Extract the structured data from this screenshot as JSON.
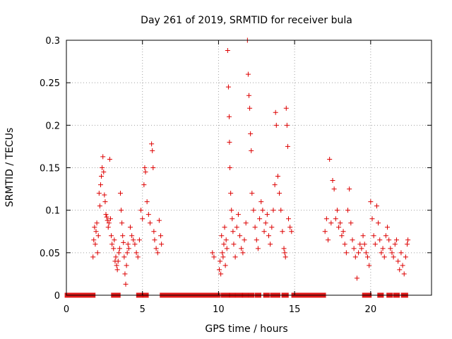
{
  "chart_data": {
    "type": "scatter",
    "title": "Day 261 of 2019, SRMTID for receiver bula",
    "xlabel": "GPS time / hours",
    "ylabel": "SRMTID / TECUs",
    "xlim": [
      0,
      24
    ],
    "ylim": [
      0,
      0.3
    ],
    "xticks": [
      0,
      5,
      10,
      15,
      20
    ],
    "xtick_labels": [
      "0",
      "5",
      "10",
      "15",
      "20"
    ],
    "yticks": [
      0,
      0.05,
      0.1,
      0.15,
      0.2,
      0.25,
      0.3
    ],
    "ytick_labels": [
      "0",
      "0.05",
      "0.1",
      "0.15",
      "0.2",
      "0.25",
      "0.3"
    ],
    "grid": true,
    "marker": "plus",
    "color": "#dd0000",
    "zero_value_ranges": [
      [
        0.05,
        1.75
      ],
      [
        3.1,
        3.4
      ],
      [
        4.75,
        4.9
      ],
      [
        5.15,
        5.25
      ],
      [
        6.3,
        9.95
      ],
      [
        10.3,
        10.6
      ],
      [
        10.85,
        10.95
      ],
      [
        11.25,
        11.45
      ],
      [
        11.7,
        11.8
      ],
      [
        12.1,
        12.2
      ],
      [
        12.55,
        12.65
      ],
      [
        13.1,
        13.2
      ],
      [
        13.55,
        13.9
      ],
      [
        14.3,
        14.45
      ],
      [
        14.95,
        16.9
      ],
      [
        19.6,
        19.9
      ],
      [
        20.6,
        20.7
      ],
      [
        21.2,
        21.3
      ],
      [
        21.65,
        21.75
      ],
      [
        22.15,
        22.3
      ]
    ],
    "series": [
      {
        "name": "SRMTID",
        "points": [
          [
            1.75,
            0.045
          ],
          [
            1.8,
            0.065
          ],
          [
            1.85,
            0.08
          ],
          [
            1.9,
            0.06
          ],
          [
            1.95,
            0.075
          ],
          [
            2.0,
            0.085
          ],
          [
            2.05,
            0.05
          ],
          [
            2.1,
            0.07
          ],
          [
            2.15,
            0.12
          ],
          [
            2.2,
            0.105
          ],
          [
            2.25,
            0.13
          ],
          [
            2.3,
            0.14
          ],
          [
            2.35,
            0.15
          ],
          [
            2.4,
            0.163
          ],
          [
            2.45,
            0.145
          ],
          [
            2.5,
            0.118
          ],
          [
            2.55,
            0.11
          ],
          [
            2.6,
            0.095
          ],
          [
            2.65,
            0.092
          ],
          [
            2.7,
            0.088
          ],
          [
            2.75,
            0.08
          ],
          [
            2.8,
            0.085
          ],
          [
            2.85,
            0.16
          ],
          [
            2.9,
            0.09
          ],
          [
            2.95,
            0.07
          ],
          [
            3.0,
            0.06
          ],
          [
            3.1,
            0.055
          ],
          [
            3.15,
            0.065
          ],
          [
            3.2,
            0.04
          ],
          [
            3.25,
            0.045
          ],
          [
            3.3,
            0.035
          ],
          [
            3.35,
            0.03
          ],
          [
            3.4,
            0.04
          ],
          [
            3.45,
            0.05
          ],
          [
            3.5,
            0.055
          ],
          [
            3.55,
            0.12
          ],
          [
            3.6,
            0.1
          ],
          [
            3.65,
            0.085
          ],
          [
            3.7,
            0.07
          ],
          [
            3.75,
            0.062
          ],
          [
            3.8,
            0.045
          ],
          [
            3.85,
            0.025
          ],
          [
            3.9,
            0.013
          ],
          [
            3.95,
            0.035
          ],
          [
            4.0,
            0.05
          ],
          [
            4.05,
            0.06
          ],
          [
            4.1,
            0.055
          ],
          [
            4.2,
            0.08
          ],
          [
            4.3,
            0.07
          ],
          [
            4.4,
            0.065
          ],
          [
            4.5,
            0.06
          ],
          [
            4.6,
            0.05
          ],
          [
            4.7,
            0.045
          ],
          [
            4.8,
            0.065
          ],
          [
            4.9,
            0.1
          ],
          [
            5.0,
            0.09
          ],
          [
            5.1,
            0.13
          ],
          [
            5.15,
            0.15
          ],
          [
            5.2,
            0.145
          ],
          [
            5.3,
            0.11
          ],
          [
            5.4,
            0.095
          ],
          [
            5.5,
            0.085
          ],
          [
            5.6,
            0.178
          ],
          [
            5.65,
            0.17
          ],
          [
            5.7,
            0.15
          ],
          [
            5.75,
            0.075
          ],
          [
            5.8,
            0.065
          ],
          [
            5.9,
            0.055
          ],
          [
            6.0,
            0.05
          ],
          [
            6.1,
            0.088
          ],
          [
            6.2,
            0.07
          ],
          [
            6.25,
            0.06
          ],
          [
            9.6,
            0.05
          ],
          [
            9.7,
            0.045
          ],
          [
            10.05,
            0.03
          ],
          [
            10.1,
            0.04
          ],
          [
            10.15,
            0.025
          ],
          [
            10.2,
            0.07
          ],
          [
            10.25,
            0.05
          ],
          [
            10.3,
            0.045
          ],
          [
            10.35,
            0.06
          ],
          [
            10.4,
            0.08
          ],
          [
            10.45,
            0.035
          ],
          [
            10.5,
            0.065
          ],
          [
            10.55,
            0.055
          ],
          [
            10.6,
            0.288
          ],
          [
            10.65,
            0.245
          ],
          [
            10.7,
            0.21
          ],
          [
            10.72,
            0.18
          ],
          [
            10.75,
            0.15
          ],
          [
            10.8,
            0.12
          ],
          [
            10.85,
            0.1
          ],
          [
            10.9,
            0.09
          ],
          [
            10.95,
            0.075
          ],
          [
            11.0,
            0.06
          ],
          [
            11.1,
            0.045
          ],
          [
            11.2,
            0.08
          ],
          [
            11.3,
            0.095
          ],
          [
            11.4,
            0.07
          ],
          [
            11.5,
            0.055
          ],
          [
            11.6,
            0.05
          ],
          [
            11.7,
            0.065
          ],
          [
            11.8,
            0.085
          ],
          [
            11.9,
            0.3
          ],
          [
            11.95,
            0.26
          ],
          [
            12.0,
            0.235
          ],
          [
            12.05,
            0.22
          ],
          [
            12.1,
            0.19
          ],
          [
            12.15,
            0.17
          ],
          [
            12.2,
            0.12
          ],
          [
            12.3,
            0.1
          ],
          [
            12.4,
            0.08
          ],
          [
            12.5,
            0.065
          ],
          [
            12.6,
            0.055
          ],
          [
            12.7,
            0.09
          ],
          [
            12.8,
            0.11
          ],
          [
            12.9,
            0.1
          ],
          [
            13.0,
            0.075
          ],
          [
            13.1,
            0.085
          ],
          [
            13.2,
            0.095
          ],
          [
            13.3,
            0.07
          ],
          [
            13.4,
            0.06
          ],
          [
            13.5,
            0.08
          ],
          [
            13.6,
            0.1
          ],
          [
            13.7,
            0.13
          ],
          [
            13.75,
            0.215
          ],
          [
            13.8,
            0.2
          ],
          [
            13.9,
            0.14
          ],
          [
            14.0,
            0.12
          ],
          [
            14.1,
            0.1
          ],
          [
            14.2,
            0.075
          ],
          [
            14.3,
            0.055
          ],
          [
            14.35,
            0.05
          ],
          [
            14.4,
            0.045
          ],
          [
            14.45,
            0.22
          ],
          [
            14.5,
            0.2
          ],
          [
            14.55,
            0.175
          ],
          [
            14.6,
            0.09
          ],
          [
            14.7,
            0.08
          ],
          [
            14.8,
            0.075
          ],
          [
            17.0,
            0.075
          ],
          [
            17.1,
            0.09
          ],
          [
            17.2,
            0.065
          ],
          [
            17.3,
            0.16
          ],
          [
            17.4,
            0.085
          ],
          [
            17.5,
            0.135
          ],
          [
            17.6,
            0.125
          ],
          [
            17.7,
            0.09
          ],
          [
            17.8,
            0.1
          ],
          [
            17.9,
            0.08
          ],
          [
            18.0,
            0.085
          ],
          [
            18.1,
            0.07
          ],
          [
            18.2,
            0.075
          ],
          [
            18.3,
            0.06
          ],
          [
            18.4,
            0.05
          ],
          [
            18.5,
            0.1
          ],
          [
            18.6,
            0.125
          ],
          [
            18.7,
            0.085
          ],
          [
            18.8,
            0.065
          ],
          [
            18.9,
            0.055
          ],
          [
            19.0,
            0.045
          ],
          [
            19.1,
            0.02
          ],
          [
            19.2,
            0.05
          ],
          [
            19.3,
            0.06
          ],
          [
            19.4,
            0.055
          ],
          [
            19.5,
            0.07
          ],
          [
            19.6,
            0.06
          ],
          [
            19.7,
            0.05
          ],
          [
            19.8,
            0.045
          ],
          [
            19.9,
            0.035
          ],
          [
            20.0,
            0.11
          ],
          [
            20.1,
            0.09
          ],
          [
            20.2,
            0.07
          ],
          [
            20.3,
            0.06
          ],
          [
            20.4,
            0.105
          ],
          [
            20.5,
            0.085
          ],
          [
            20.6,
            0.065
          ],
          [
            20.7,
            0.05
          ],
          [
            20.8,
            0.055
          ],
          [
            20.9,
            0.045
          ],
          [
            21.0,
            0.07
          ],
          [
            21.1,
            0.08
          ],
          [
            21.2,
            0.065
          ],
          [
            21.3,
            0.055
          ],
          [
            21.4,
            0.05
          ],
          [
            21.5,
            0.045
          ],
          [
            21.6,
            0.06
          ],
          [
            21.7,
            0.065
          ],
          [
            21.8,
            0.04
          ],
          [
            21.9,
            0.03
          ],
          [
            22.0,
            0.05
          ],
          [
            22.1,
            0.035
          ],
          [
            22.2,
            0.025
          ],
          [
            22.3,
            0.045
          ],
          [
            22.4,
            0.06
          ],
          [
            22.45,
            0.065
          ]
        ]
      }
    ]
  }
}
